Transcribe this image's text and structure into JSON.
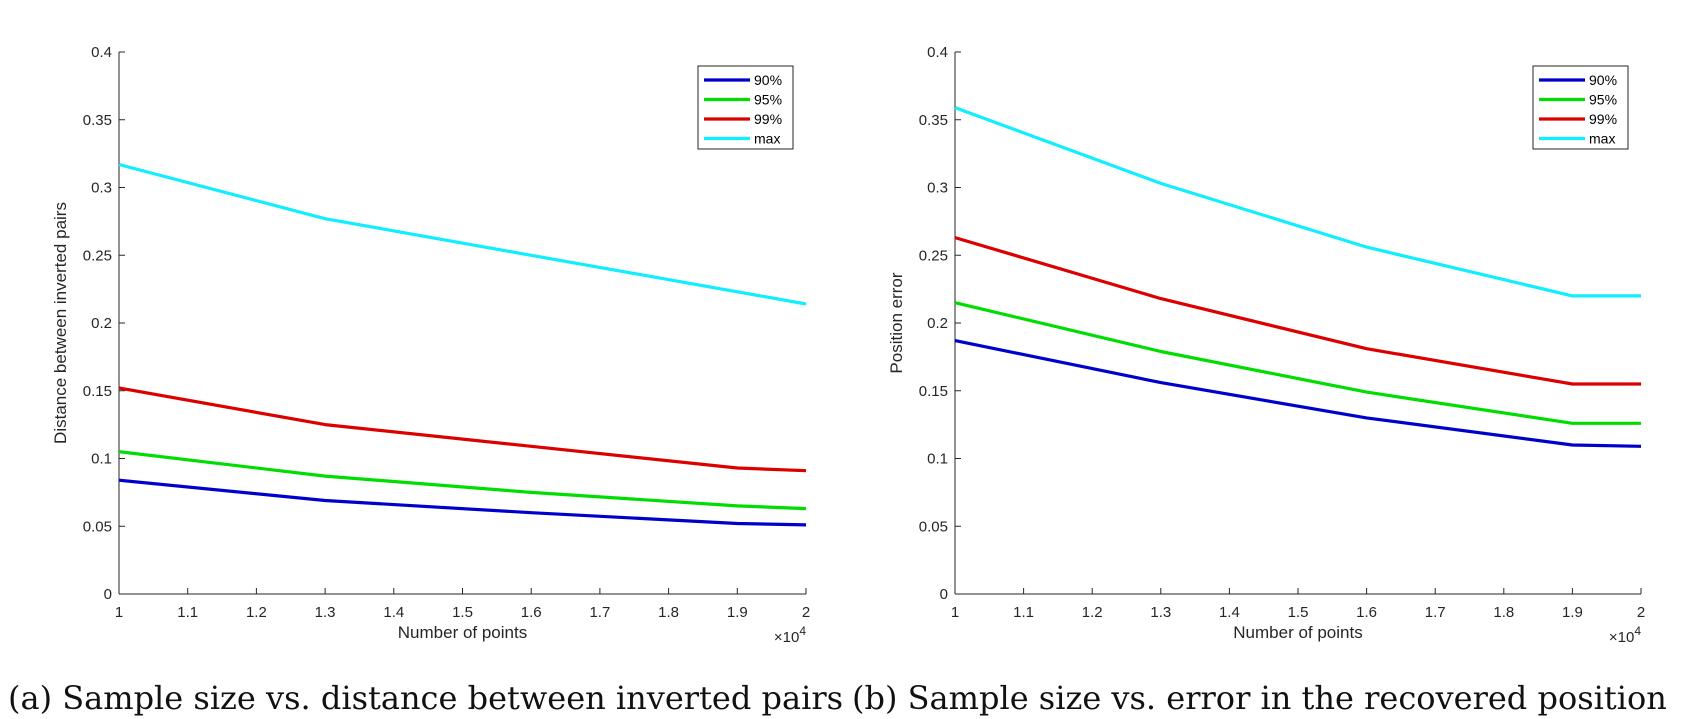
{
  "chart_data": [
    {
      "id": "a",
      "type": "line",
      "title": "",
      "xlabel": "Number of points",
      "ylabel": "Distance between inverted pairs",
      "x_multiplier": "×10",
      "x_multiplier_exp": "4",
      "xlim": [
        1,
        2
      ],
      "ylim": [
        0,
        0.4
      ],
      "xticks": [
        "1",
        "1.1",
        "1.2",
        "1.3",
        "1.4",
        "1.5",
        "1.6",
        "1.7",
        "1.8",
        "1.9",
        "2"
      ],
      "yticks": [
        "0",
        "0.05",
        "0.1",
        "0.15",
        "0.2",
        "0.25",
        "0.3",
        "0.35",
        "0.4"
      ],
      "legend_position": "top-right",
      "grid": false,
      "series": [
        {
          "name": "90%",
          "color": "#0000cc",
          "x": [
            1,
            1.3,
            1.6,
            1.9,
            2
          ],
          "values": [
            0.084,
            0.069,
            0.06,
            0.052,
            0.051
          ]
        },
        {
          "name": "95%",
          "color": "#00dd00",
          "x": [
            1,
            1.3,
            1.6,
            1.9,
            2
          ],
          "values": [
            0.105,
            0.087,
            0.075,
            0.065,
            0.063
          ]
        },
        {
          "name": "99%",
          "color": "#dd0000",
          "x": [
            1,
            1.3,
            1.6,
            1.9,
            2
          ],
          "values": [
            0.152,
            0.125,
            0.109,
            0.093,
            0.091
          ]
        },
        {
          "name": "max",
          "color": "#11eeff",
          "x": [
            1,
            1.3,
            1.6,
            1.9,
            2
          ],
          "values": [
            0.317,
            0.277,
            0.25,
            0.223,
            0.214
          ]
        }
      ]
    },
    {
      "id": "b",
      "type": "line",
      "title": "",
      "xlabel": "Number of points",
      "ylabel": "Position error",
      "x_multiplier": "×10",
      "x_multiplier_exp": "4",
      "xlim": [
        1,
        2
      ],
      "ylim": [
        0,
        0.4
      ],
      "xticks": [
        "1",
        "1.1",
        "1.2",
        "1.3",
        "1.4",
        "1.5",
        "1.6",
        "1.7",
        "1.8",
        "1.9",
        "2"
      ],
      "yticks": [
        "0",
        "0.05",
        "0.1",
        "0.15",
        "0.2",
        "0.25",
        "0.3",
        "0.35",
        "0.4"
      ],
      "legend_position": "top-right",
      "grid": false,
      "series": [
        {
          "name": "90%",
          "color": "#0000cc",
          "x": [
            1,
            1.3,
            1.6,
            1.9,
            2
          ],
          "values": [
            0.187,
            0.156,
            0.13,
            0.11,
            0.109
          ]
        },
        {
          "name": "95%",
          "color": "#00dd00",
          "x": [
            1,
            1.3,
            1.6,
            1.9,
            2
          ],
          "values": [
            0.215,
            0.179,
            0.149,
            0.126,
            0.126
          ]
        },
        {
          "name": "99%",
          "color": "#dd0000",
          "x": [
            1,
            1.3,
            1.6,
            1.9,
            2
          ],
          "values": [
            0.263,
            0.218,
            0.181,
            0.155,
            0.155
          ]
        },
        {
          "name": "max",
          "color": "#11eeff",
          "x": [
            1,
            1.3,
            1.6,
            1.9,
            2
          ],
          "values": [
            0.359,
            0.303,
            0.256,
            0.22,
            0.22
          ]
        }
      ]
    }
  ],
  "captions": {
    "a": "(a) Sample size vs. distance between inverted pairs",
    "b": "(b) Sample size vs. error in the recovered position"
  }
}
